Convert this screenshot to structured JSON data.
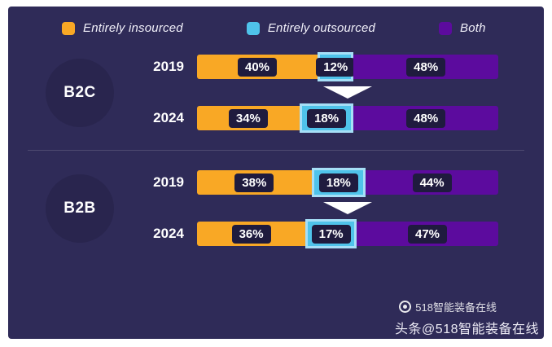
{
  "colors": {
    "background": "#2F2B58",
    "badge": "#29254E",
    "label_box": "#1F1B3E",
    "insourced": "#F9A825",
    "outsourced": "#4FC3EA",
    "both": "#5C0B9E"
  },
  "legend": {
    "items": [
      {
        "label": "Entirely insourced",
        "color": "#F9A825"
      },
      {
        "label": "Entirely outsourced",
        "color": "#4FC3EA"
      },
      {
        "label": "Both",
        "color": "#5C0B9E"
      }
    ]
  },
  "chart_data": {
    "type": "bar",
    "stacked": true,
    "orientation": "horizontal",
    "unit": "%",
    "series_names": [
      "Entirely insourced",
      "Entirely outsourced",
      "Both"
    ],
    "series_colors": [
      "#F9A825",
      "#4FC3EA",
      "#5C0B9E"
    ],
    "xlim": [
      0,
      100
    ],
    "groups": [
      {
        "group": "B2C",
        "rows": [
          {
            "year": "2019",
            "values": [
              40,
              12,
              48
            ],
            "labels": [
              "40%",
              "12%",
              "48%"
            ]
          },
          {
            "year": "2024",
            "values": [
              34,
              18,
              48
            ],
            "labels": [
              "34%",
              "18%",
              "48%"
            ]
          }
        ]
      },
      {
        "group": "B2B",
        "rows": [
          {
            "year": "2019",
            "values": [
              38,
              18,
              44
            ],
            "labels": [
              "38%",
              "18%",
              "44%"
            ]
          },
          {
            "year": "2024",
            "values": [
              36,
              17,
              47
            ],
            "labels": [
              "36%",
              "17%",
              "47%"
            ]
          }
        ]
      }
    ]
  },
  "watermark": {
    "overlay": "518智能装备在线",
    "footer": "头条@518智能装备在线"
  }
}
